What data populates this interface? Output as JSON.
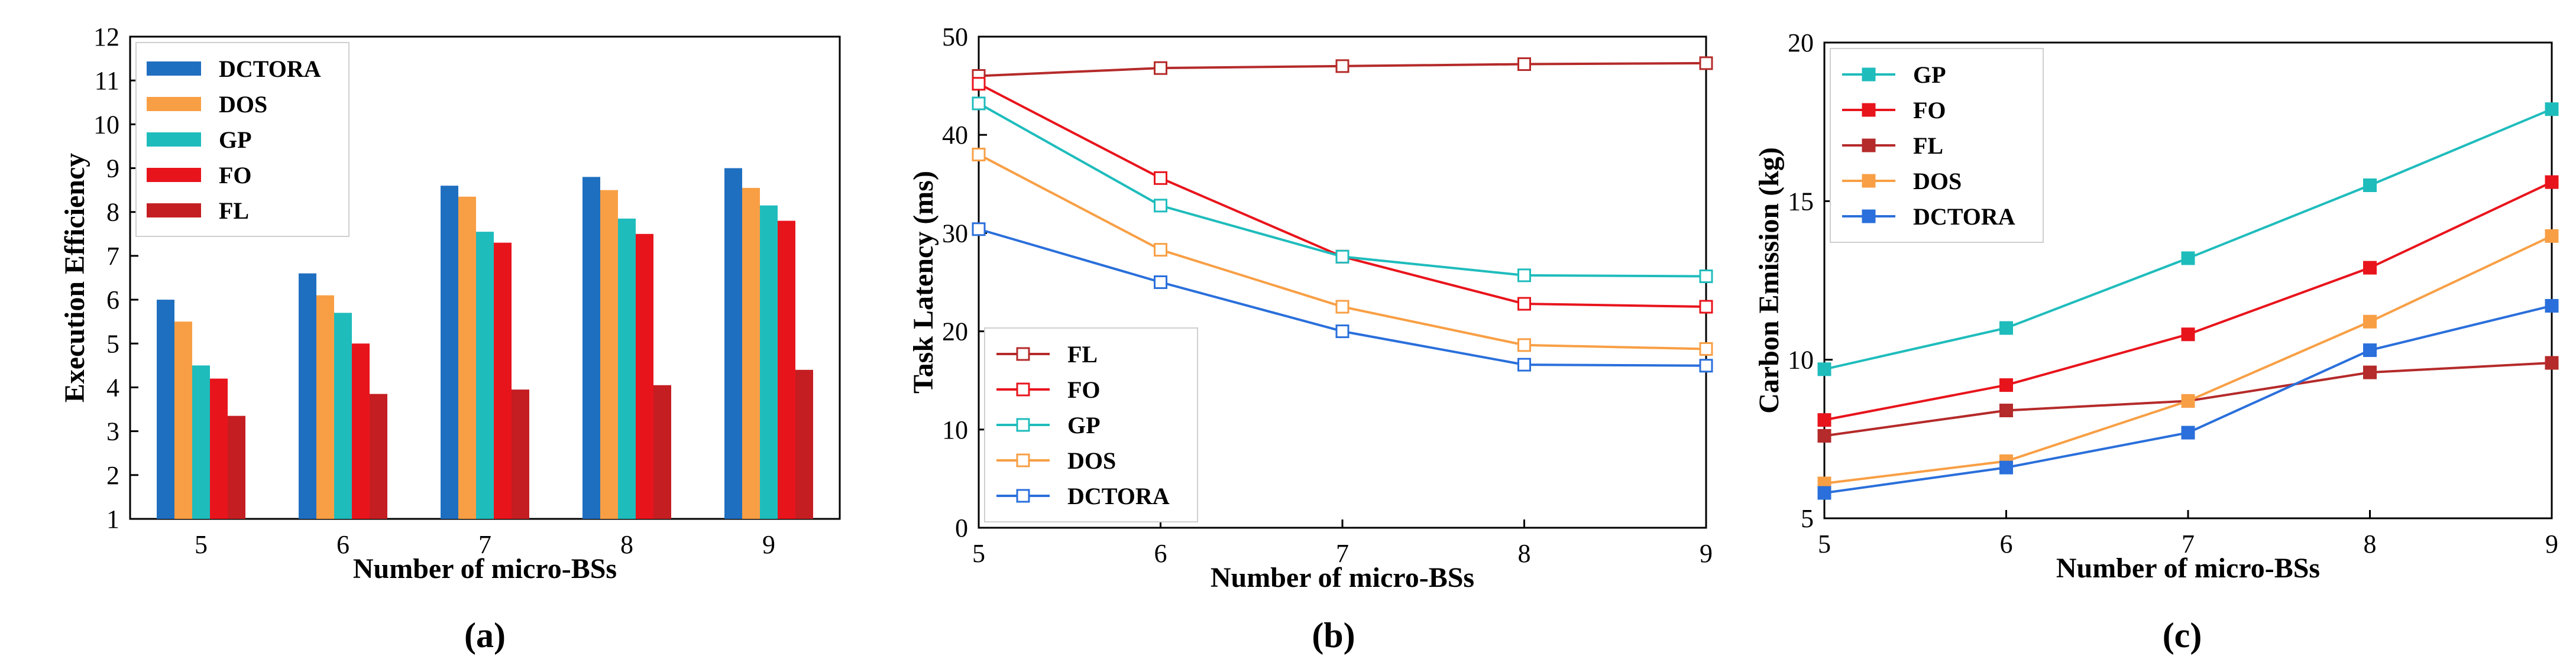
{
  "colors": {
    "DCTORA": "#1f6fc0",
    "DOS": "#f89f45",
    "GP": "#1fbcbc",
    "FO": "#e8141c",
    "FL": "#c41e22",
    "DCTORA_line": "#2a6fdb",
    "FL_line": "#b52a2a"
  },
  "chart_data": [
    {
      "type": "bar",
      "caption": "(a)",
      "xlabel": "Number of micro-BSs",
      "ylabel": "Execution Efficiency",
      "categories": [
        "5",
        "6",
        "7",
        "8",
        "9"
      ],
      "ylim": [
        1,
        12
      ],
      "yticks": [
        "1",
        "2",
        "3",
        "4",
        "5",
        "6",
        "7",
        "8",
        "9",
        "10",
        "11",
        "12"
      ],
      "legend_position": "top-left",
      "series": [
        {
          "name": "DCTORA",
          "color": "#1f6fc0",
          "values": [
            6.0,
            6.6,
            8.6,
            8.8,
            9.0
          ]
        },
        {
          "name": "DOS",
          "color": "#f89f45",
          "values": [
            5.5,
            6.1,
            8.35,
            8.5,
            8.55
          ]
        },
        {
          "name": "GP",
          "color": "#1fbcbc",
          "values": [
            4.5,
            5.7,
            7.55,
            7.85,
            8.15
          ]
        },
        {
          "name": "FO",
          "color": "#e8141c",
          "values": [
            4.2,
            5.0,
            7.3,
            7.5,
            7.8
          ]
        },
        {
          "name": "FL",
          "color": "#c41e22",
          "values": [
            3.35,
            3.85,
            3.95,
            4.05,
            4.4
          ]
        }
      ]
    },
    {
      "type": "line",
      "caption": "(b)",
      "xlabel": "Number of micro-BSs",
      "ylabel": "Task Latency (ms)",
      "x": [
        5,
        6,
        7,
        8,
        9
      ],
      "xticks": [
        "5",
        "6",
        "7",
        "8",
        "9"
      ],
      "ylim": [
        0,
        50
      ],
      "yticks": [
        "0",
        "10",
        "20",
        "30",
        "40",
        "50"
      ],
      "marker": "open-square",
      "legend_position": "bottom-left",
      "series": [
        {
          "name": "FL",
          "color": "#b52a2a",
          "values": [
            46.0,
            46.8,
            47.0,
            47.2,
            47.3
          ]
        },
        {
          "name": "FO",
          "color": "#e8141c",
          "values": [
            45.2,
            35.6,
            27.6,
            22.8,
            22.5
          ]
        },
        {
          "name": "GP",
          "color": "#1fbcbc",
          "values": [
            43.2,
            32.8,
            27.6,
            25.7,
            25.6
          ]
        },
        {
          "name": "DOS",
          "color": "#f89f45",
          "values": [
            38.0,
            28.3,
            22.5,
            18.6,
            18.2
          ]
        },
        {
          "name": "DCTORA",
          "color": "#2a6fdb",
          "values": [
            30.4,
            25.0,
            20.0,
            16.6,
            16.5
          ]
        }
      ]
    },
    {
      "type": "line",
      "caption": "(c)",
      "xlabel": "Number of micro-BSs",
      "ylabel": "Carbon Emission (kg)",
      "x": [
        5,
        6,
        7,
        8,
        9
      ],
      "xticks": [
        "5",
        "6",
        "7",
        "8",
        "9"
      ],
      "ylim": [
        5,
        20
      ],
      "yticks": [
        "5",
        "10",
        "15",
        "20"
      ],
      "marker": "filled-square",
      "legend_position": "top-left",
      "series": [
        {
          "name": "GP",
          "color": "#1fbcbc",
          "values": [
            9.7,
            11.0,
            13.2,
            15.5,
            17.9
          ]
        },
        {
          "name": "FO",
          "color": "#e8141c",
          "values": [
            8.1,
            9.2,
            10.8,
            12.9,
            15.6
          ]
        },
        {
          "name": "FL",
          "color": "#b52a2a",
          "values": [
            7.6,
            8.4,
            8.7,
            9.6,
            9.9
          ]
        },
        {
          "name": "DOS",
          "color": "#f89f45",
          "values": [
            6.1,
            6.8,
            8.7,
            11.2,
            13.9
          ]
        },
        {
          "name": "DCTORA",
          "color": "#2a6fdb",
          "values": [
            5.8,
            6.6,
            7.7,
            10.3,
            11.7
          ]
        }
      ]
    }
  ]
}
